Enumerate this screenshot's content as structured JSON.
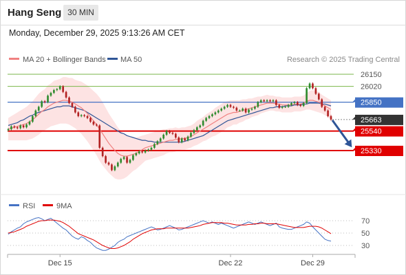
{
  "header": {
    "symbol": "Hang Seng",
    "timeframe": "30 MIN",
    "datetime": "Monday, December 29, 2025 9:13:26 AM CET"
  },
  "legend": {
    "ma20_label": "MA 20 + Bollinger Bands",
    "ma50_label": "MA 50",
    "credit": "Research © 2025 Trading Central",
    "rsi_label": "RSI",
    "ma9_label": "9MA"
  },
  "colors": {
    "ma20": "#f08080",
    "band_fill": "#fde0e0",
    "ma50": "#2f5597",
    "candle_up": "#2e8b2e",
    "candle_down": "#b22222",
    "green_level": "#7ab648",
    "blue_level": "#4472c4",
    "red_level": "#e00000",
    "price_box": "#333333",
    "arrow": "#2f5597",
    "rsi": "#4472c4",
    "rsi_ma": "#e00000"
  },
  "chart_data": [
    {
      "type": "candlestick",
      "title": "Hang Seng",
      "ylim": [
        25100,
        26250
      ],
      "last_price": 25663,
      "levels": [
        {
          "value": 26150,
          "label": "26150",
          "style": "resistance-green"
        },
        {
          "value": 26020,
          "label": "26020",
          "style": "resistance-green"
        },
        {
          "value": 25850,
          "label": "25850",
          "style": "pivot-blue"
        },
        {
          "value": 25663,
          "label": "25663",
          "style": "last-price"
        },
        {
          "value": 25540,
          "label": "25540",
          "style": "support-red"
        },
        {
          "value": 25330,
          "label": "25330",
          "style": "support-red"
        }
      ],
      "x_ticks": [
        {
          "index": 17,
          "label": "Dec 15"
        },
        {
          "index": 73,
          "label": "Dec 22"
        },
        {
          "index": 100,
          "label": "Dec 29"
        }
      ],
      "closes": [
        25560,
        25590,
        25580,
        25570,
        25600,
        25580,
        25610,
        25640,
        25700,
        25760,
        25800,
        25860,
        25850,
        25920,
        25950,
        25980,
        25990,
        26020,
        25960,
        25900,
        25840,
        25800,
        25740,
        25700,
        25710,
        25700,
        25680,
        25640,
        25610,
        25600,
        25360,
        25270,
        25200,
        25180,
        25120,
        25160,
        25200,
        25240,
        25260,
        25200,
        25230,
        25280,
        25300,
        25320,
        25310,
        25330,
        25340,
        25360,
        25400,
        25430,
        25460,
        25500,
        25540,
        25520,
        25510,
        25470,
        25420,
        25460,
        25440,
        25480,
        25520,
        25550,
        25580,
        25600,
        25650,
        25680,
        25700,
        25720,
        25740,
        25760,
        25780,
        25800,
        25820,
        25800,
        25790,
        25760,
        25760,
        25780,
        25740,
        25770,
        25780,
        25800,
        25850,
        25870,
        25860,
        25870,
        25860,
        25870,
        25820,
        25790,
        25800,
        25800,
        25820,
        25840,
        25850,
        25820,
        25810,
        25840,
        26000,
        26050,
        26000,
        25940,
        25880,
        25800,
        25760,
        25700,
        25663
      ],
      "ma20": [
        25560,
        25570,
        25580,
        25590,
        25600,
        25610,
        25620,
        25640,
        25660,
        25690,
        25720,
        25750,
        25770,
        25800,
        25820,
        25840,
        25850,
        25860,
        25870,
        25870,
        25860,
        25850,
        25830,
        25810,
        25790,
        25760,
        25730,
        25690,
        25650,
        25610,
        25560,
        25510,
        25460,
        25410,
        25370,
        25330,
        25300,
        25280,
        25270,
        25270,
        25280,
        25290,
        25300,
        25320,
        25340,
        25360,
        25370,
        25380,
        25390,
        25400,
        25410,
        25420,
        25430,
        25440,
        25440,
        25450,
        25450,
        25460,
        25460,
        25470,
        25480,
        25500,
        25520,
        25540,
        25560,
        25580,
        25600,
        25620,
        25640,
        25660,
        25680,
        25700,
        25720,
        25730,
        25740,
        25740,
        25750,
        25760,
        25770,
        25780,
        25790,
        25800,
        25810,
        25820,
        25830,
        25840,
        25840,
        25840,
        25830,
        25830,
        25820,
        25820,
        25820,
        25820,
        25830,
        25830,
        25830,
        25840,
        25860,
        25870,
        25870,
        25860,
        25850,
        25830,
        25810,
        25790,
        25770
      ],
      "ma50": [
        25600,
        25610,
        25620,
        25630,
        25650,
        25660,
        25680,
        25700,
        25710,
        25730,
        25740,
        25750,
        25760,
        25770,
        25780,
        25790,
        25800,
        25800,
        25810,
        25810,
        25810,
        25800,
        25790,
        25780,
        25770,
        25760,
        25740,
        25720,
        25700,
        25680,
        25660,
        25640,
        25620,
        25600,
        25580,
        25560,
        25540,
        25520,
        25510,
        25490,
        25480,
        25470,
        25460,
        25450,
        25440,
        25440,
        25430,
        25430,
        25420,
        25420,
        25420,
        25420,
        25420,
        25420,
        25420,
        25420,
        25420,
        25420,
        25430,
        25440,
        25450,
        25460,
        25470,
        25480,
        25490,
        25510,
        25530,
        25550,
        25570,
        25590,
        25610,
        25630,
        25650,
        25660,
        25670,
        25680,
        25690,
        25700,
        25710,
        25720,
        25730,
        25740,
        25750,
        25760,
        25770,
        25780,
        25790,
        25790,
        25800,
        25800,
        25800,
        25810,
        25810,
        25810,
        25820,
        25820,
        25820,
        25830,
        25830,
        25840,
        25840,
        25840,
        25840,
        25830,
        25830,
        25820,
        25810
      ],
      "bb_width": [
        120,
        130,
        140,
        150,
        160,
        170,
        180,
        190,
        200,
        210,
        220,
        220,
        220,
        230,
        230,
        240,
        240,
        240,
        250,
        250,
        250,
        260,
        260,
        270,
        280,
        290,
        300,
        310,
        320,
        330,
        340,
        340,
        330,
        320,
        310,
        300,
        280,
        260,
        240,
        220,
        200,
        180,
        170,
        160,
        150,
        140,
        140,
        140,
        140,
        140,
        140,
        140,
        130,
        130,
        130,
        130,
        120,
        120,
        120,
        120,
        120,
        120,
        130,
        130,
        130,
        140,
        140,
        140,
        150,
        150,
        150,
        150,
        140,
        140,
        130,
        130,
        120,
        120,
        110,
        110,
        100,
        100,
        100,
        90,
        90,
        90,
        80,
        80,
        80,
        80,
        80,
        80,
        80,
        80,
        80,
        80,
        80,
        80,
        90,
        100,
        110,
        110,
        110,
        100,
        100,
        100,
        100
      ]
    },
    {
      "type": "line",
      "title": "RSI",
      "ylim": [
        20,
        80
      ],
      "y_ticks": [
        70,
        50,
        30
      ],
      "series": [
        {
          "name": "RSI",
          "values": [
            48,
            52,
            55,
            58,
            60,
            65,
            68,
            70,
            72,
            74,
            75,
            73,
            70,
            72,
            74,
            70,
            66,
            62,
            58,
            55,
            50,
            45,
            42,
            40,
            44,
            42,
            38,
            35,
            30,
            26,
            24,
            22,
            22,
            24,
            27,
            30,
            35,
            38,
            40,
            44,
            46,
            48,
            50,
            52,
            54,
            56,
            58,
            60,
            58,
            55,
            56,
            58,
            60,
            62,
            60,
            58,
            55,
            56,
            58,
            60,
            62,
            64,
            66,
            68,
            70,
            68,
            66,
            68,
            66,
            64,
            66,
            64,
            62,
            60,
            58,
            60,
            62,
            64,
            66,
            68,
            66,
            64,
            66,
            68,
            66,
            64,
            62,
            64,
            66,
            60,
            58,
            57,
            56,
            56,
            58,
            60,
            62,
            64,
            68,
            66,
            60,
            55,
            50,
            45,
            40,
            38,
            37
          ]
        },
        {
          "name": "9MA",
          "values": [
            50,
            51,
            52,
            54,
            56,
            58,
            61,
            63,
            65,
            67,
            69,
            70,
            70,
            71,
            71,
            71,
            70,
            69,
            67,
            64,
            61,
            57,
            53,
            49,
            47,
            45,
            43,
            41,
            39,
            36,
            33,
            30,
            28,
            26,
            25,
            25,
            26,
            28,
            30,
            33,
            36,
            40,
            43,
            46,
            49,
            51,
            53,
            55,
            56,
            57,
            57,
            57,
            58,
            58,
            58,
            58,
            58,
            58,
            58,
            58,
            59,
            60,
            61,
            62,
            64,
            65,
            66,
            67,
            67,
            67,
            67,
            66,
            66,
            65,
            64,
            63,
            63,
            63,
            63,
            64,
            64,
            65,
            65,
            66,
            66,
            65,
            65,
            65,
            65,
            64,
            63,
            62,
            61,
            60,
            59,
            59,
            59,
            59,
            60,
            61,
            61,
            61,
            60,
            58,
            55,
            52,
            49
          ]
        }
      ]
    }
  ]
}
